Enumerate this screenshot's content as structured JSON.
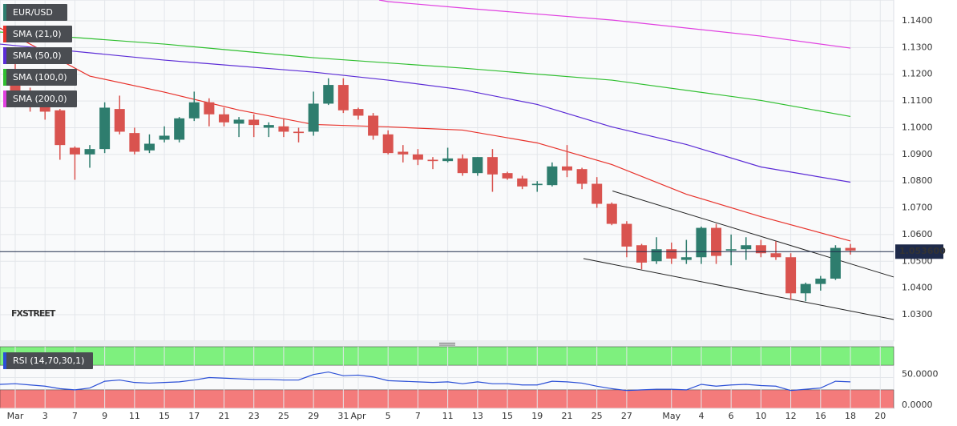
{
  "chart_data": [
    {
      "type": "candlestick",
      "candles": {
        "name": "EUR/USD",
        "up_color": "#2e7d6e",
        "down_color": "#d9534f",
        "x": [
          0,
          1,
          2,
          3,
          4,
          5,
          6,
          7,
          8,
          9,
          10,
          11,
          12,
          13,
          14,
          15,
          16,
          17,
          18,
          19,
          20,
          21,
          22,
          23,
          24,
          25,
          26,
          27,
          28,
          29,
          30,
          31,
          32,
          33,
          34,
          35,
          36,
          37,
          38,
          39,
          40,
          41,
          42,
          43,
          44,
          45,
          46,
          47,
          48,
          49,
          50,
          51,
          52,
          53,
          54,
          55,
          56
        ],
        "open": [
          1.122,
          1.1125,
          1.111,
          1.1065,
          1.0925,
          1.09,
          1.092,
          1.107,
          1.098,
          1.0915,
          1.0955,
          1.0955,
          1.1035,
          1.1095,
          1.105,
          1.1015,
          1.103,
          1.1,
          1.1005,
          1.0985,
          1.0985,
          1.109,
          1.116,
          1.107,
          1.1045,
          1.0975,
          1.091,
          1.09,
          1.088,
          1.0875,
          1.0885,
          1.083,
          1.089,
          1.083,
          1.081,
          1.0785,
          1.0785,
          1.0855,
          1.0845,
          1.079,
          1.0715,
          1.064,
          1.056,
          1.05,
          1.0545,
          1.0505,
          1.0515,
          1.0625,
          1.054,
          1.0545,
          1.056,
          1.053,
          1.0515,
          1.038,
          1.0415,
          1.0435,
          1.055
        ],
        "high": [
          1.124,
          1.115,
          1.111,
          1.107,
          1.093,
          1.0935,
          1.1095,
          1.112,
          1.1,
          1.0975,
          1.1005,
          1.104,
          1.1135,
          1.111,
          1.1075,
          1.104,
          1.105,
          1.102,
          1.1035,
          1.1,
          1.1135,
          1.1185,
          1.1185,
          1.1075,
          1.1055,
          1.099,
          1.0935,
          1.092,
          1.089,
          1.0925,
          1.09,
          1.089,
          1.092,
          1.0835,
          1.082,
          1.08,
          1.087,
          1.0935,
          1.085,
          1.0815,
          1.072,
          1.065,
          1.0565,
          1.059,
          1.057,
          1.058,
          1.063,
          1.064,
          1.06,
          1.059,
          1.058,
          1.0575,
          1.053,
          1.042,
          1.0445,
          1.056,
          1.0565
        ],
        "low": [
          1.111,
          1.106,
          1.103,
          1.088,
          1.0805,
          1.085,
          1.0905,
          1.0975,
          1.09,
          1.0905,
          1.0945,
          1.0945,
          1.1025,
          1.1005,
          1.1005,
          1.0965,
          1.0965,
          1.0965,
          1.0965,
          1.0945,
          1.097,
          1.1085,
          1.1055,
          1.103,
          1.0955,
          1.09,
          1.087,
          1.086,
          1.0845,
          1.087,
          1.082,
          1.082,
          1.076,
          1.0805,
          1.077,
          1.076,
          1.078,
          1.0815,
          1.077,
          1.07,
          1.0635,
          1.0515,
          1.047,
          1.049,
          1.049,
          1.049,
          1.049,
          1.049,
          1.0485,
          1.0505,
          1.0515,
          1.0505,
          1.0355,
          1.035,
          1.039,
          1.043,
          1.0525
        ],
        "close": [
          1.1125,
          1.111,
          1.106,
          1.0935,
          1.09,
          1.092,
          1.1075,
          1.0985,
          1.091,
          1.094,
          1.097,
          1.1035,
          1.1095,
          1.105,
          1.102,
          1.103,
          1.101,
          1.101,
          1.0985,
          1.098,
          1.109,
          1.116,
          1.1065,
          1.1045,
          1.097,
          1.0905,
          1.09,
          1.088,
          1.0875,
          1.0885,
          1.083,
          1.089,
          1.0825,
          1.081,
          1.078,
          1.079,
          1.0855,
          1.084,
          1.079,
          1.0715,
          1.064,
          1.0555,
          1.0495,
          1.0545,
          1.051,
          1.0515,
          1.0625,
          1.052,
          1.0545,
          1.056,
          1.053,
          1.0515,
          1.038,
          1.0415,
          1.0435,
          1.055,
          1.054
        ]
      },
      "series": [
        {
          "name": "SMA (21,0)",
          "color": "#e8322b",
          "x": [
            -1.02,
            0,
            5,
            10,
            15,
            20,
            25,
            30,
            35,
            40,
            45,
            50,
            56
          ],
          "values": [
            1.1373,
            1.1343,
            1.1193,
            1.1133,
            1.1066,
            1.1012,
            1.1003,
            1.0991,
            1.0943,
            1.0862,
            1.0751,
            1.0667,
            1.0576
          ]
        },
        {
          "name": "SMA (50,0)",
          "color": "#5b2bd6",
          "x": [
            -1.02,
            10,
            20,
            25,
            30,
            35,
            40,
            45,
            50,
            56
          ],
          "values": [
            1.1313,
            1.1253,
            1.1208,
            1.1178,
            1.1142,
            1.1087,
            1.1003,
            1.0937,
            1.0853,
            1.0796
          ]
        },
        {
          "name": "SMA (100,0)",
          "color": "#2fbf2f",
          "x": [
            -1.02,
            10,
            20,
            30,
            40,
            50,
            56
          ],
          "values": [
            1.1358,
            1.1313,
            1.1262,
            1.1223,
            1.1178,
            1.1102,
            1.1042
          ]
        },
        {
          "name": "SMA (200,0)",
          "color": "#e040e0",
          "x": [
            24.4,
            25,
            30,
            40,
            50,
            56
          ],
          "values": [
            1.1478,
            1.1472,
            1.1448,
            1.1403,
            1.1343,
            1.1298
          ]
        }
      ],
      "trendlines": [
        {
          "color": "#222",
          "x": [
            40.05,
            58.9
          ],
          "values": [
            1.0763,
            1.0441
          ]
        },
        {
          "color": "#222",
          "x": [
            38.1,
            58.9
          ],
          "values": [
            1.051,
            1.0282
          ]
        }
      ],
      "last_price": {
        "value": 1.0536,
        "label": "1.053600",
        "color": "#1e2a4a"
      },
      "watermark": "FXSTREET",
      "xlim": [
        -1.02,
        58.9
      ],
      "ylim": [
        1.0201,
        1.1478
      ],
      "yticks": [
        {
          "value": 1.03,
          "label": "1.0300"
        },
        {
          "value": 1.04,
          "label": "1.0400"
        },
        {
          "value": 1.05,
          "label": "1.0500"
        },
        {
          "value": 1.06,
          "label": "1.0600"
        },
        {
          "value": 1.07,
          "label": "1.0700"
        },
        {
          "value": 1.08,
          "label": "1.0800"
        },
        {
          "value": 1.09,
          "label": "1.0900"
        },
        {
          "value": 1.1,
          "label": "1.1000"
        },
        {
          "value": 1.11,
          "label": "1.1100"
        },
        {
          "value": 1.12,
          "label": "1.1200"
        },
        {
          "value": 1.13,
          "label": "1.1300"
        },
        {
          "value": 1.14,
          "label": "1.1400"
        }
      ],
      "grid": true
    },
    {
      "type": "line",
      "series": [
        {
          "name": "RSI (14,70,30,1)",
          "color": "#2a4fd6",
          "x": [
            -1.02,
            0,
            1,
            2,
            3,
            4,
            5,
            6,
            7,
            8,
            9,
            10,
            11,
            12,
            13,
            14,
            15,
            16,
            17,
            18,
            19,
            20,
            21,
            22,
            23,
            24,
            25,
            26,
            27,
            28,
            29,
            30,
            31,
            32,
            33,
            34,
            35,
            36,
            37,
            38,
            39,
            40,
            41,
            42,
            43,
            44,
            45,
            46,
            47,
            48,
            49,
            50,
            51,
            52,
            53,
            54,
            55,
            56
          ],
          "values": [
            39,
            40,
            38,
            36,
            32,
            30,
            33,
            44,
            46,
            42,
            41,
            42,
            43,
            46,
            50,
            49,
            48,
            47,
            47,
            46,
            46,
            55,
            59,
            53,
            54,
            51,
            45,
            44,
            43,
            42,
            43,
            40,
            43,
            40,
            40,
            38,
            38,
            44,
            43,
            41,
            36,
            32,
            29,
            30,
            31,
            31,
            30,
            39,
            36,
            38,
            39,
            37,
            36,
            29,
            31,
            33,
            44,
            43
          ]
        }
      ],
      "bands": [
        {
          "color": "#7ef07e",
          "range": [
            70,
            100
          ]
        },
        {
          "color": "#f47b7b",
          "range": [
            0,
            30
          ]
        }
      ],
      "xlim": [
        -1.02,
        58.9
      ],
      "ylim": [
        0,
        100
      ],
      "yticks": [
        {
          "value": 0,
          "label": "0.0000"
        },
        {
          "value": 50,
          "label": "50.0000"
        }
      ],
      "xticks": [
        {
          "value": 0,
          "label": "Mar"
        },
        {
          "value": 2,
          "label": "3"
        },
        {
          "value": 4,
          "label": "7"
        },
        {
          "value": 6,
          "label": "9"
        },
        {
          "value": 8,
          "label": "11"
        },
        {
          "value": 10,
          "label": "15"
        },
        {
          "value": 12,
          "label": "17"
        },
        {
          "value": 14,
          "label": "21"
        },
        {
          "value": 16,
          "label": "23"
        },
        {
          "value": 18,
          "label": "25"
        },
        {
          "value": 20,
          "label": "29"
        },
        {
          "value": 22,
          "label": "31"
        },
        {
          "value": 23,
          "label": "Apr"
        },
        {
          "value": 25,
          "label": "5"
        },
        {
          "value": 27,
          "label": "7"
        },
        {
          "value": 29,
          "label": "11"
        },
        {
          "value": 31,
          "label": "13"
        },
        {
          "value": 33,
          "label": "15"
        },
        {
          "value": 35,
          "label": "19"
        },
        {
          "value": 37,
          "label": "21"
        },
        {
          "value": 39,
          "label": "25"
        },
        {
          "value": 41,
          "label": "27"
        },
        {
          "value": 44,
          "label": "May"
        },
        {
          "value": 46,
          "label": "4"
        },
        {
          "value": 48,
          "label": "6"
        },
        {
          "value": 50,
          "label": "10"
        },
        {
          "value": 52,
          "label": "12"
        },
        {
          "value": 54,
          "label": "16"
        },
        {
          "value": 56,
          "label": "18"
        },
        {
          "value": 58,
          "label": "20"
        }
      ],
      "grid": true
    }
  ]
}
